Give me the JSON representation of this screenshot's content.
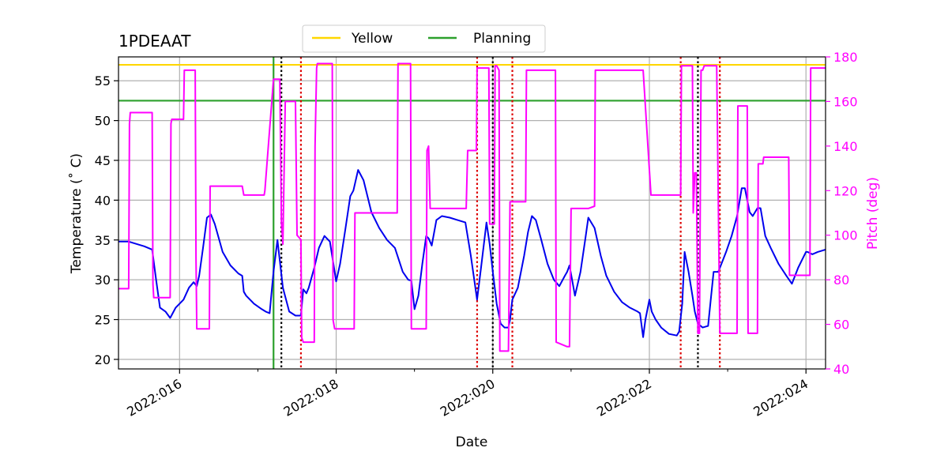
{
  "chart_data": {
    "type": "line",
    "title": "1PDEAAT",
    "xlabel": "Date",
    "ylabel": "Temperature ($^\\circ$C)",
    "ylabel_display": "Temperature (˚ C)",
    "y2label": "Pitch (deg)",
    "xlim": [
      15.22,
      24.25
    ],
    "ylim": [
      18.8,
      58.0
    ],
    "y2lim": [
      40,
      180
    ],
    "x_ticks": [
      16,
      18,
      20,
      22,
      24
    ],
    "x_tick_labels": [
      "2022:016",
      "2022:018",
      "2022:020",
      "2022:022",
      "2022:024"
    ],
    "x_minor_ticks": [
      17,
      19,
      21,
      23
    ],
    "y_ticks": [
      20,
      25,
      30,
      35,
      40,
      45,
      50,
      55
    ],
    "y_tick_labels": [
      "20",
      "25",
      "30",
      "35",
      "40",
      "45",
      "50",
      "55"
    ],
    "y2_ticks": [
      40,
      60,
      80,
      100,
      120,
      140,
      160,
      180
    ],
    "y2_tick_labels": [
      "40",
      "60",
      "80",
      "100",
      "120",
      "140",
      "160",
      "180"
    ],
    "grid": true,
    "colors": {
      "temperature": "#0000ee",
      "pitch": "#ff00ff",
      "yellow": "#ffd700",
      "planning": "#2ca02c",
      "red_marker": "#dd0000",
      "black_marker": "#000000"
    },
    "legend": {
      "placement": "top-center",
      "entries": [
        {
          "label": "Yellow",
          "color": "#ffd700"
        },
        {
          "label": "Planning",
          "color": "#2ca02c"
        }
      ]
    },
    "limits": {
      "yellow": 57.0,
      "planning": 52.5
    },
    "planning_vline": 17.2,
    "red_vlines": [
      17.55,
      19.8,
      20.25,
      22.4,
      22.9
    ],
    "black_vlines": [
      17.3,
      20.0,
      22.62
    ],
    "series": [
      {
        "name": "Temperature",
        "axis": "left",
        "color": "#0000ee",
        "x": [
          15.22,
          15.35,
          15.45,
          15.55,
          15.65,
          15.7,
          15.75,
          15.82,
          15.88,
          15.95,
          16.0,
          16.05,
          16.12,
          16.18,
          16.22,
          16.25,
          16.3,
          16.35,
          16.4,
          16.45,
          16.55,
          16.65,
          16.75,
          16.8,
          16.82,
          16.85,
          16.95,
          17.05,
          17.1,
          17.15,
          17.2,
          17.25,
          17.32,
          17.4,
          17.48,
          17.55,
          17.58,
          17.62,
          17.65,
          17.72,
          17.78,
          17.85,
          17.92,
          18.0,
          18.05,
          18.12,
          18.18,
          18.22,
          18.28,
          18.35,
          18.45,
          18.55,
          18.65,
          18.75,
          18.85,
          18.92,
          18.96,
          19.0,
          19.05,
          19.1,
          19.15,
          19.18,
          19.22,
          19.28,
          19.35,
          19.45,
          19.55,
          19.65,
          19.72,
          19.8,
          19.85,
          19.92,
          19.96,
          20.0,
          20.05,
          20.1,
          20.15,
          20.2,
          20.22,
          20.25,
          20.32,
          20.4,
          20.45,
          20.5,
          20.55,
          20.62,
          20.7,
          20.78,
          20.85,
          20.92,
          20.95,
          20.98,
          21.05,
          21.12,
          21.18,
          21.22,
          21.3,
          21.38,
          21.45,
          21.55,
          21.65,
          21.75,
          21.85,
          21.88,
          21.92,
          21.95,
          22.0,
          22.03,
          22.08,
          22.15,
          22.25,
          22.35,
          22.38,
          22.42,
          22.45,
          22.5,
          22.55,
          22.58,
          22.62,
          22.68,
          22.75,
          22.82,
          22.88,
          22.92,
          22.98,
          23.05,
          23.12,
          23.18,
          23.22,
          23.25,
          23.28,
          23.32,
          23.38,
          23.42,
          23.48,
          23.55,
          23.65,
          23.75,
          23.82,
          23.9,
          24.0,
          24.02,
          24.08,
          24.15,
          24.25
        ],
        "values": [
          34.8,
          34.8,
          34.5,
          34.2,
          33.8,
          30.0,
          26.5,
          26.0,
          25.2,
          26.5,
          27.0,
          27.5,
          29.0,
          29.7,
          29.2,
          30.5,
          34.0,
          37.8,
          38.2,
          37.0,
          33.5,
          31.8,
          30.8,
          30.5,
          28.5,
          28.0,
          27.0,
          26.3,
          26.0,
          25.8,
          31.0,
          35.0,
          29.0,
          26.0,
          25.5,
          25.5,
          28.8,
          28.3,
          29.0,
          31.5,
          34.0,
          35.5,
          34.8,
          29.8,
          32.0,
          36.5,
          40.5,
          41.2,
          43.8,
          42.5,
          38.5,
          36.5,
          35.0,
          34.0,
          31.0,
          30.0,
          29.9,
          26.3,
          28.0,
          32.0,
          35.5,
          35.2,
          34.3,
          37.5,
          38.0,
          37.8,
          37.5,
          37.2,
          33.0,
          27.5,
          31.5,
          37.2,
          34.5,
          31.0,
          27.0,
          24.5,
          24.0,
          24.0,
          25.0,
          27.5,
          29.0,
          33.0,
          36.0,
          38.0,
          37.5,
          35.0,
          32.0,
          30.0,
          29.2,
          30.5,
          31.0,
          31.8,
          28.0,
          31.0,
          35.0,
          37.8,
          36.5,
          33.0,
          30.5,
          28.5,
          27.2,
          26.5,
          26.0,
          25.8,
          22.8,
          25.0,
          27.5,
          26.0,
          25.0,
          24.0,
          23.2,
          23.0,
          23.5,
          27.0,
          33.5,
          31.0,
          28.0,
          26.0,
          24.5,
          24.0,
          24.2,
          31.0,
          31.0,
          32.0,
          33.5,
          35.5,
          38.0,
          41.5,
          41.5,
          40.0,
          38.5,
          38.0,
          39.0,
          39.0,
          35.5,
          34.0,
          32.0,
          30.5,
          29.5,
          31.5,
          33.5,
          33.5,
          33.2,
          33.5,
          33.8
        ],
        "style": "solid"
      },
      {
        "name": "Pitch",
        "axis": "right",
        "color": "#ff00ff",
        "x": [
          15.22,
          15.35,
          15.36,
          15.37,
          15.65,
          15.66,
          15.67,
          15.88,
          15.89,
          15.9,
          16.05,
          16.06,
          16.2,
          16.21,
          16.22,
          16.38,
          16.39,
          16.8,
          16.82,
          17.08,
          17.09,
          17.2,
          17.28,
          17.3,
          17.32,
          17.35,
          17.48,
          17.5,
          17.55,
          17.56,
          17.58,
          17.72,
          17.73,
          17.75,
          17.76,
          17.95,
          17.96,
          17.98,
          17.99,
          18.23,
          18.24,
          18.25,
          18.78,
          18.79,
          18.95,
          18.96,
          18.97,
          19.15,
          19.16,
          19.18,
          19.2,
          19.22,
          19.65,
          19.66,
          19.68,
          19.78,
          19.79,
          19.8,
          19.95,
          19.96,
          20.02,
          20.03,
          20.05,
          20.08,
          20.09,
          20.2,
          20.22,
          20.23,
          20.42,
          20.43,
          20.8,
          20.81,
          20.95,
          20.96,
          20.98,
          21.0,
          21.2,
          21.21,
          21.22,
          21.3,
          21.31,
          21.88,
          21.9,
          21.91,
          21.92,
          22.02,
          22.03,
          22.4,
          22.41,
          22.55,
          22.56,
          22.58,
          22.6,
          22.62,
          22.64,
          22.66,
          22.68,
          22.7,
          22.85,
          22.86,
          22.9,
          22.91,
          23.12,
          23.13,
          23.25,
          23.26,
          23.38,
          23.39,
          23.45,
          23.46,
          23.78,
          23.79,
          24.05,
          24.06,
          24.25
        ],
        "values": [
          76,
          76,
          150,
          155,
          155,
          78,
          72,
          72,
          150,
          152,
          152,
          174,
          174,
          90,
          58,
          58,
          122,
          122,
          118,
          118,
          120,
          170,
          170,
          106,
          96,
          160,
          160,
          100,
          98,
          54,
          52,
          52,
          140,
          175,
          177,
          177,
          62,
          58,
          58,
          58,
          110,
          110,
          110,
          177,
          177,
          58,
          58,
          58,
          138,
          140,
          112,
          112,
          112,
          112,
          138,
          138,
          138,
          175,
          175,
          105,
          105,
          176,
          176,
          174,
          48,
          48,
          115,
          115,
          115,
          174,
          174,
          52,
          50,
          50,
          50,
          112,
          112,
          112,
          112,
          113,
          174,
          174,
          174,
          174,
          174,
          118,
          118,
          118,
          176,
          176,
          110,
          128,
          128,
          56,
          56,
          174,
          174,
          176,
          176,
          176,
          56,
          56,
          56,
          158,
          158,
          56,
          56,
          132,
          132,
          135,
          135,
          82,
          82,
          175,
          175
        ],
        "style": "solid"
      }
    ]
  }
}
